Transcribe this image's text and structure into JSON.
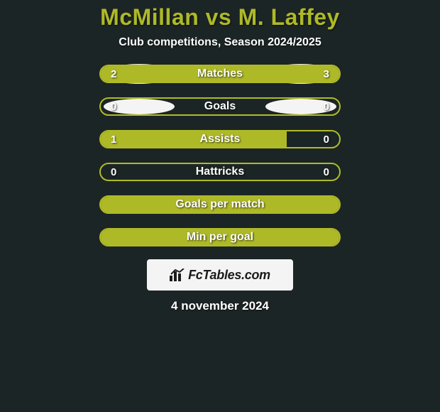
{
  "background_color": "#1c2525",
  "title": {
    "text": "McMillan vs M. Laffey",
    "color": "#aeb927",
    "fontsize": 32
  },
  "subtitle": {
    "text": "Club competitions, Season 2024/2025",
    "color": "#ffffff",
    "fontsize": 16
  },
  "bar_track_border_color": "#b0bb27",
  "bar_left_color": "#aeb927",
  "bar_right_color": "#aeb927",
  "rows": [
    {
      "label": "Matches",
      "left_val": "2",
      "right_val": "3",
      "left_pct": 40,
      "right_pct": 60,
      "show_left_ellipse": true,
      "show_right_ellipse": true,
      "ellipse_size": "big"
    },
    {
      "label": "Goals",
      "left_val": "0",
      "right_val": "0",
      "left_pct": 0,
      "right_pct": 0,
      "show_left_ellipse": true,
      "show_right_ellipse": true,
      "ellipse_size": "small"
    },
    {
      "label": "Assists",
      "left_val": "1",
      "right_val": "0",
      "left_pct": 78,
      "right_pct": 0,
      "show_left_ellipse": false,
      "show_right_ellipse": false
    },
    {
      "label": "Hattricks",
      "left_val": "0",
      "right_val": "0",
      "left_pct": 0,
      "right_pct": 0,
      "show_left_ellipse": false,
      "show_right_ellipse": false
    },
    {
      "label": "Goals per match",
      "left_val": "",
      "right_val": "",
      "left_pct": 100,
      "right_pct": 0,
      "show_left_ellipse": false,
      "show_right_ellipse": false
    },
    {
      "label": "Min per goal",
      "left_val": "",
      "right_val": "",
      "left_pct": 0,
      "right_pct": 100,
      "show_left_ellipse": false,
      "show_right_ellipse": false
    }
  ],
  "ellipse_color": "#f4f4f4",
  "badge": {
    "bg": "#f4f4f4",
    "text_color": "#1b1b1b",
    "text": "FcTables.com"
  },
  "date": {
    "text": "4 november 2024",
    "color": "#ffffff"
  }
}
